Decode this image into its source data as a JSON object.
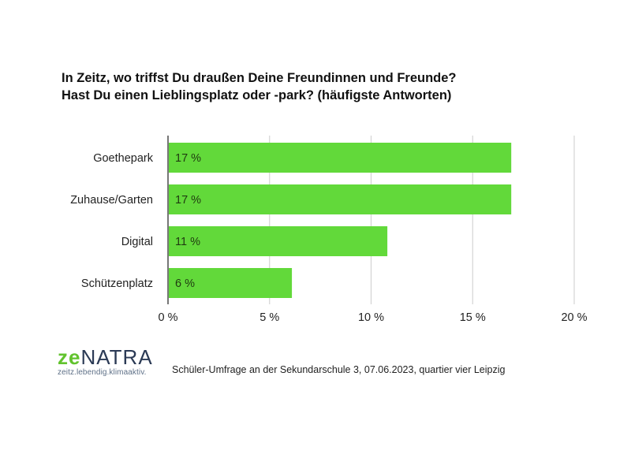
{
  "chart_data": {
    "type": "bar",
    "orientation": "horizontal",
    "title": "In Zeitz, wo triffst Du draußen Deine Freundinnen und Freunde?",
    "subtitle": "Hast Du einen Lieblingsplatz oder -park? (häufigste Antworten)",
    "categories": [
      "Goethepark",
      "Zuhause/Garten",
      "Digital",
      "Schützenplatz"
    ],
    "values": [
      16.9,
      16.9,
      10.8,
      6.1
    ],
    "data_labels": [
      "17 %",
      "17 %",
      "11 %",
      "6 %"
    ],
    "xlim": [
      0,
      20
    ],
    "ticks": [
      0,
      5,
      10,
      15,
      20
    ],
    "tick_labels": [
      "0 %",
      "5 %",
      "10 %",
      "15 %",
      "20 %"
    ],
    "xlabel": "",
    "ylabel": "",
    "grid": true,
    "bar_color": "#62D93A"
  },
  "logo": {
    "text_a": "ze",
    "text_b": "NATRA",
    "tagline": "zeitz.lebendig.klimaaktiv."
  },
  "footer": {
    "source": "Schüler-Umfrage an der Sekundarschule 3, 07.06.2023, quartier vier Leipzig"
  }
}
